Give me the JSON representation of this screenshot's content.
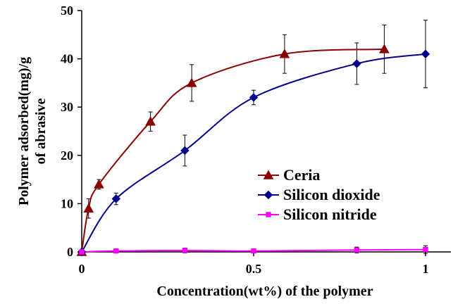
{
  "chart_data": {
    "type": "line",
    "xlabel": "Concentration(wt%) of the polymer",
    "ylabel_lines": [
      "Polymer adsorbed(mg)/g",
      "of abrasive"
    ],
    "xlim": [
      0,
      1
    ],
    "ylim": [
      0,
      50
    ],
    "x_ticks": [
      0,
      0.5,
      1
    ],
    "x_tick_labels": [
      "0",
      "0.5",
      "1"
    ],
    "y_ticks": [
      0,
      10,
      20,
      30,
      40,
      50
    ],
    "y_tick_labels": [
      "0",
      "10",
      "20",
      "30",
      "40",
      "50"
    ],
    "grid": false,
    "legend_position": "center-right",
    "series": [
      {
        "name": "Ceria",
        "color": "#8b0000",
        "marker": "triangle",
        "points": [
          {
            "x": 0,
            "y": 0,
            "err": 0
          },
          {
            "x": 0.02,
            "y": 9,
            "err": 2
          },
          {
            "x": 0.05,
            "y": 14,
            "err": 1
          },
          {
            "x": 0.2,
            "y": 27,
            "err": 2
          },
          {
            "x": 0.32,
            "y": 35,
            "err": 3.8
          },
          {
            "x": 0.59,
            "y": 41,
            "err": 4
          },
          {
            "x": 0.88,
            "y": 42,
            "err": 5
          }
        ]
      },
      {
        "name": "Silicon dioxide",
        "color": "#00008b",
        "marker": "diamond",
        "points": [
          {
            "x": 0,
            "y": 0,
            "err": 0
          },
          {
            "x": 0.1,
            "y": 11,
            "err": 1.2
          },
          {
            "x": 0.3,
            "y": 21,
            "err": 3.2
          },
          {
            "x": 0.5,
            "y": 32,
            "err": 1.5
          },
          {
            "x": 0.8,
            "y": 39,
            "err": 4.3
          },
          {
            "x": 1.0,
            "y": 41,
            "err": 7
          }
        ]
      },
      {
        "name": "Silicon nitride",
        "color": "#ff00ff",
        "marker": "square",
        "points": [
          {
            "x": 0,
            "y": 0,
            "err": 0
          },
          {
            "x": 0.1,
            "y": 0.2,
            "err": 0.4
          },
          {
            "x": 0.3,
            "y": 0.3,
            "err": 0.5
          },
          {
            "x": 0.5,
            "y": 0.2,
            "err": 0.3
          },
          {
            "x": 0.8,
            "y": 0.4,
            "err": 0.6
          },
          {
            "x": 1.0,
            "y": 0.5,
            "err": 0.8
          }
        ]
      }
    ]
  }
}
